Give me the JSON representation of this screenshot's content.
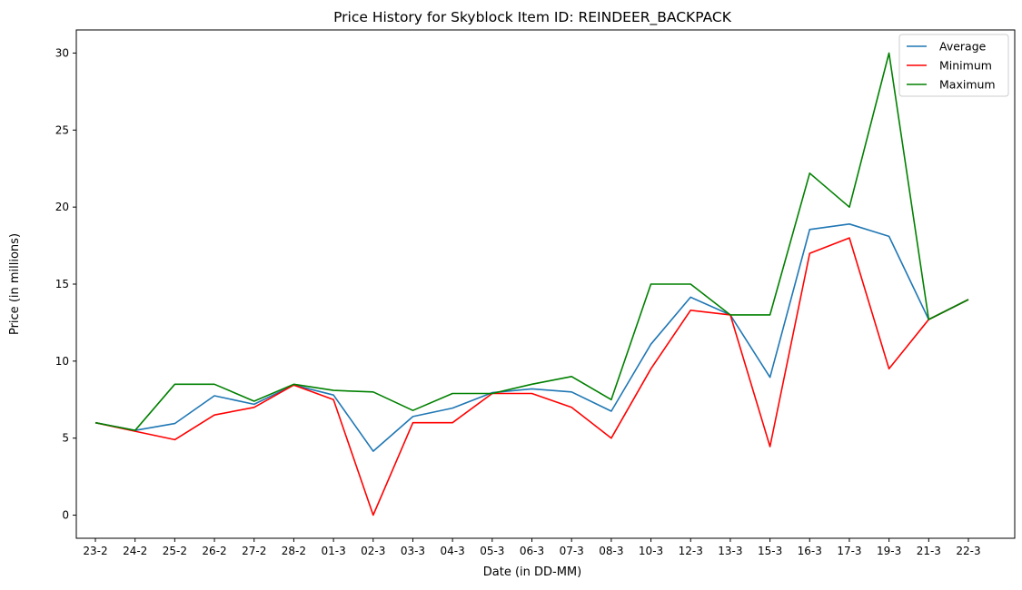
{
  "chart_data": {
    "type": "line",
    "title": "Price History for Skyblock Item ID: REINDEER_BACKPACK",
    "xlabel": "Date (in DD-MM)",
    "ylabel": "Price (in millions)",
    "categories": [
      "23-2",
      "24-2",
      "25-2",
      "26-2",
      "27-2",
      "28-2",
      "01-3",
      "02-3",
      "03-3",
      "04-3",
      "05-3",
      "06-3",
      "07-3",
      "08-3",
      "10-3",
      "12-3",
      "13-3",
      "15-3",
      "16-3",
      "17-3",
      "19-3",
      "21-3",
      "22-3"
    ],
    "ylim": [
      -1.5,
      31.5
    ],
    "yticks": [
      0,
      5,
      10,
      15,
      20,
      25,
      30
    ],
    "grid": false,
    "legend_position": "upper-right",
    "series": [
      {
        "name": "Average",
        "color": "#1f77b4",
        "values": [
          6.0,
          5.5,
          5.95,
          7.75,
          7.2,
          8.45,
          7.8,
          4.15,
          6.4,
          6.95,
          7.95,
          8.2,
          8.0,
          6.75,
          11.1,
          14.15,
          13.0,
          8.95,
          18.55,
          18.9,
          18.1,
          12.7,
          14.0
        ]
      },
      {
        "name": "Minimum",
        "color": "#ff0000",
        "values": [
          6.0,
          5.45,
          4.9,
          6.5,
          7.0,
          8.45,
          7.5,
          0.0,
          6.0,
          6.0,
          7.9,
          7.9,
          7.0,
          5.0,
          9.5,
          13.3,
          13.0,
          4.45,
          17.0,
          18.0,
          9.5,
          12.7,
          14.0
        ]
      },
      {
        "name": "Maximum",
        "color": "#008000",
        "values": [
          6.0,
          5.5,
          8.5,
          8.5,
          7.4,
          8.5,
          8.1,
          8.0,
          6.8,
          7.9,
          7.9,
          8.5,
          9.0,
          7.5,
          15.0,
          15.0,
          13.0,
          13.0,
          22.2,
          20.0,
          30.0,
          12.7,
          14.0
        ]
      }
    ]
  }
}
